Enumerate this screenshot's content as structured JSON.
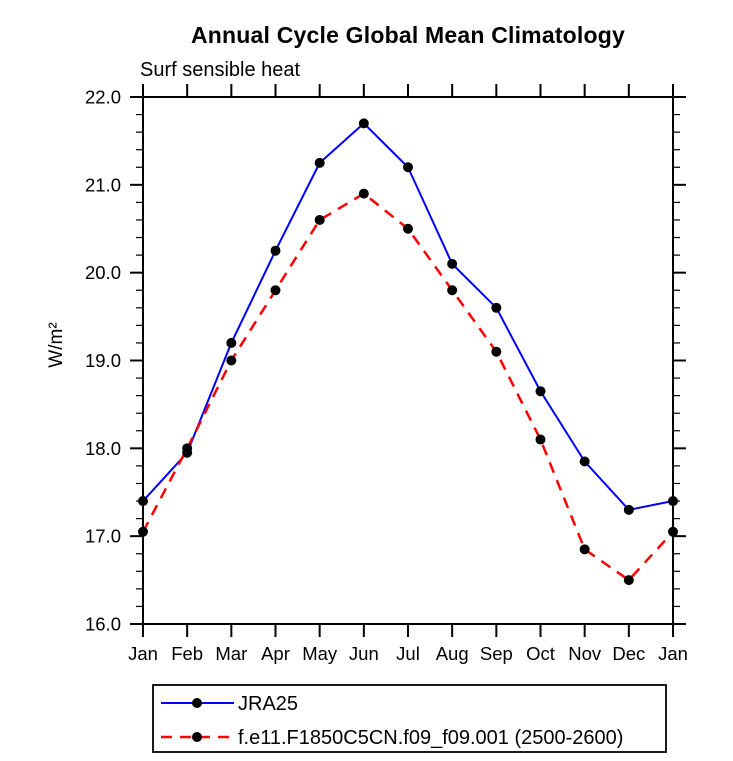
{
  "chart_data": {
    "type": "line",
    "title": "Annual Cycle Global Mean Climatology",
    "subtitle": "Surf sensible heat",
    "ylabel": "W/m²",
    "xlabel": "",
    "ylim": [
      16.0,
      22.0
    ],
    "y_major_step": 1.0,
    "y_minor_step": 0.2,
    "y_tick_labels": [
      "16.0",
      "17.0",
      "18.0",
      "19.0",
      "20.0",
      "21.0",
      "22.0"
    ],
    "grid": false,
    "legend_position": "bottom-box",
    "axis_color": "#000000",
    "categories": [
      "Jan",
      "Feb",
      "Mar",
      "Apr",
      "May",
      "Jun",
      "Jul",
      "Aug",
      "Sep",
      "Oct",
      "Nov",
      "Dec",
      "Jan"
    ],
    "series": [
      {
        "name": "JRA25",
        "color": "#0000ff",
        "line_style": "solid",
        "line_width": 2,
        "marker": "filled-circle",
        "marker_color": "#000000",
        "values": [
          17.4,
          17.95,
          19.2,
          20.25,
          21.25,
          21.7,
          21.2,
          20.1,
          19.6,
          18.65,
          17.85,
          17.3,
          17.4
        ]
      },
      {
        "name": "f.e11.F1850C5CN.f09_f09.001 (2500-2600)",
        "color": "#ff0000",
        "line_style": "dashed",
        "line_width": 2.5,
        "marker": "filled-circle",
        "marker_color": "#000000",
        "values": [
          17.05,
          18.0,
          19.0,
          19.8,
          20.6,
          20.9,
          20.5,
          19.8,
          19.1,
          18.1,
          16.85,
          16.5,
          17.05
        ]
      }
    ]
  }
}
